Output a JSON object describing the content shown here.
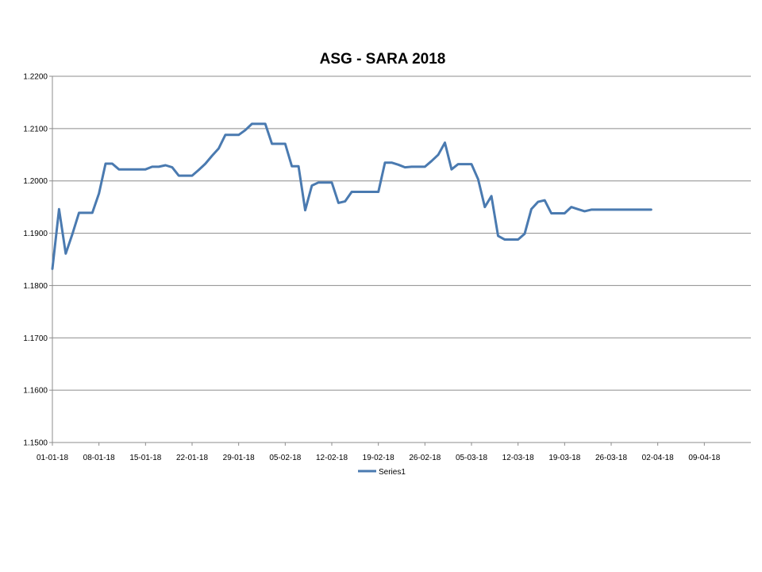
{
  "chart_data": {
    "type": "line",
    "title": "ASG - SARA 2018",
    "xlabel": "",
    "ylabel": "",
    "x_tick_labels": [
      "01-01-18",
      "08-01-18",
      "15-01-18",
      "22-01-18",
      "29-01-18",
      "05-02-18",
      "12-02-18",
      "19-02-18",
      "26-02-18",
      "05-03-18",
      "12-03-18",
      "19-03-18",
      "26-03-18",
      "02-04-18",
      "09-04-18"
    ],
    "y_tick_labels": [
      "1.1500",
      "1.1600",
      "1.1700",
      "1.1800",
      "1.1900",
      "1.2000",
      "1.2100",
      "1.2200"
    ],
    "xlim": [
      "2018-01-01",
      "2018-04-16"
    ],
    "ylim": [
      1.15,
      1.22
    ],
    "grid": "horizontal",
    "legend_position": "bottom",
    "line_color": "#4a7ab0",
    "series": [
      {
        "name": "Series1",
        "x": [
          "2018-01-01",
          "2018-01-02",
          "2018-01-03",
          "2018-01-04",
          "2018-01-05",
          "2018-01-06",
          "2018-01-07",
          "2018-01-08",
          "2018-01-09",
          "2018-01-10",
          "2018-01-11",
          "2018-01-12",
          "2018-01-13",
          "2018-01-14",
          "2018-01-15",
          "2018-01-16",
          "2018-01-17",
          "2018-01-18",
          "2018-01-19",
          "2018-01-20",
          "2018-01-21",
          "2018-01-22",
          "2018-01-23",
          "2018-01-24",
          "2018-01-25",
          "2018-01-26",
          "2018-01-27",
          "2018-01-28",
          "2018-01-29",
          "2018-01-30",
          "2018-01-31",
          "2018-02-01",
          "2018-02-02",
          "2018-02-03",
          "2018-02-04",
          "2018-02-05",
          "2018-02-06",
          "2018-02-07",
          "2018-02-08",
          "2018-02-09",
          "2018-02-10",
          "2018-02-11",
          "2018-02-12",
          "2018-02-13",
          "2018-02-14",
          "2018-02-15",
          "2018-02-16",
          "2018-02-17",
          "2018-02-18",
          "2018-02-19",
          "2018-02-20",
          "2018-02-21",
          "2018-02-22",
          "2018-02-23",
          "2018-02-24",
          "2018-02-25",
          "2018-02-26",
          "2018-02-27",
          "2018-02-28",
          "2018-03-01",
          "2018-03-02",
          "2018-03-03",
          "2018-03-04",
          "2018-03-05",
          "2018-03-06",
          "2018-03-07",
          "2018-03-08",
          "2018-03-09",
          "2018-03-10",
          "2018-03-11",
          "2018-03-12",
          "2018-03-13",
          "2018-03-14",
          "2018-03-15",
          "2018-03-16",
          "2018-03-17",
          "2018-03-18",
          "2018-03-19",
          "2018-03-20",
          "2018-03-21",
          "2018-03-22",
          "2018-03-23",
          "2018-03-24",
          "2018-03-25",
          "2018-03-26",
          "2018-03-27",
          "2018-03-28",
          "2018-03-29",
          "2018-03-30",
          "2018-03-31",
          "2018-04-01"
        ],
        "values": [
          1.1832,
          1.1946,
          1.1861,
          1.1898,
          1.1939,
          1.1939,
          1.1939,
          1.1976,
          1.2033,
          1.2033,
          1.2022,
          1.2022,
          1.2022,
          1.2022,
          1.2022,
          1.2027,
          1.2027,
          1.203,
          1.2026,
          1.201,
          1.201,
          1.201,
          1.2021,
          1.2033,
          1.2048,
          1.2062,
          1.2088,
          1.2088,
          1.2088,
          1.2097,
          1.2109,
          1.2109,
          1.2109,
          1.2071,
          1.2071,
          1.2071,
          1.2028,
          1.2028,
          1.1944,
          1.1991,
          1.1997,
          1.1997,
          1.1997,
          1.1958,
          1.1961,
          1.1979,
          1.1979,
          1.1979,
          1.1979,
          1.1979,
          1.2035,
          1.2035,
          1.2031,
          1.2026,
          1.2027,
          1.2027,
          1.2027,
          1.2038,
          1.205,
          1.2073,
          1.2022,
          1.2032,
          1.2032,
          1.2032,
          1.2003,
          1.195,
          1.1971,
          1.1895,
          1.1888,
          1.1888,
          1.1888,
          1.1899,
          1.1946,
          1.196,
          1.1963,
          1.1938,
          1.1938,
          1.1938,
          1.195,
          1.1946,
          1.1942,
          1.1945,
          1.1945,
          1.1945,
          1.1945,
          1.1945,
          1.1945,
          1.1945,
          1.1945,
          1.1945,
          1.1945
        ]
      }
    ]
  }
}
